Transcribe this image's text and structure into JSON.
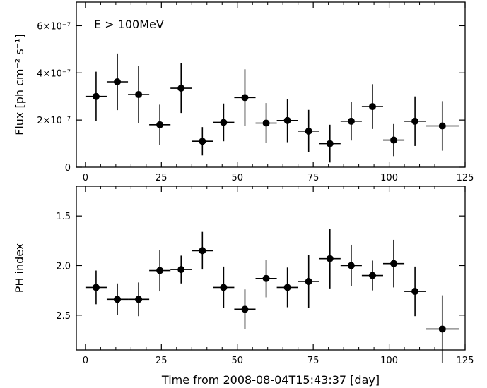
{
  "chart_data": [
    {
      "type": "scatter",
      "style": "errorbar",
      "annotation": "E > 100MeV",
      "xlabel": "",
      "ylabel": "Flux [ph cm⁻² s⁻¹]",
      "xlim": [
        -3,
        125
      ],
      "ylim": [
        0,
        7e-07
      ],
      "xticks": [
        0,
        25,
        50,
        75,
        100,
        125
      ],
      "yticks": [
        0,
        2e-07,
        4e-07,
        6e-07
      ],
      "ytick_labels": [
        "0",
        "2×10⁻⁷",
        "4×10⁻⁷",
        "6×10⁻⁷"
      ],
      "grid": false,
      "points": [
        {
          "x": 3.5,
          "xerr": 3.5,
          "y": 3e-07,
          "yerr": 1.05e-07
        },
        {
          "x": 10.5,
          "xerr": 3.5,
          "y": 3.62e-07,
          "yerr": 1.2e-07
        },
        {
          "x": 17.5,
          "xerr": 3.5,
          "y": 3.08e-07,
          "yerr": 1.2e-07
        },
        {
          "x": 24.5,
          "xerr": 3.5,
          "y": 1.8e-07,
          "yerr": 8.5e-08
        },
        {
          "x": 31.5,
          "xerr": 3.5,
          "y": 3.35e-07,
          "yerr": 1.05e-07
        },
        {
          "x": 38.5,
          "xerr": 3.5,
          "y": 1.1e-07,
          "yerr": 6e-08
        },
        {
          "x": 45.5,
          "xerr": 3.5,
          "y": 1.9e-07,
          "yerr": 8e-08
        },
        {
          "x": 52.5,
          "xerr": 3.5,
          "y": 2.95e-07,
          "yerr": 1.2e-07
        },
        {
          "x": 59.5,
          "xerr": 3.5,
          "y": 1.87e-07,
          "yerr": 8.5e-08
        },
        {
          "x": 66.5,
          "xerr": 3.5,
          "y": 1.98e-07,
          "yerr": 9.2e-08
        },
        {
          "x": 73.5,
          "xerr": 3.5,
          "y": 1.53e-07,
          "yerr": 9e-08
        },
        {
          "x": 80.5,
          "xerr": 3.5,
          "y": 1e-07,
          "yerr": 8e-08
        },
        {
          "x": 87.5,
          "xerr": 3.5,
          "y": 1.95e-07,
          "yerr": 8.2e-08
        },
        {
          "x": 94.5,
          "xerr": 3.5,
          "y": 2.57e-07,
          "yerr": 9.5e-08
        },
        {
          "x": 101.5,
          "xerr": 3.5,
          "y": 1.15e-07,
          "yerr": 6.8e-08
        },
        {
          "x": 108.5,
          "xerr": 3.5,
          "y": 1.95e-07,
          "yerr": 1.05e-07
        },
        {
          "x": 117.5,
          "xerr": 5.5,
          "y": 1.75e-07,
          "yerr": 1.05e-07
        }
      ]
    },
    {
      "type": "scatter",
      "style": "errorbar",
      "xlabel": "Time from 2008-08-04T15:43:37 [day]",
      "ylabel": "PH index",
      "xlim": [
        -3,
        125
      ],
      "ylim": [
        2.85,
        1.2
      ],
      "y_inverted": true,
      "xticks": [
        0,
        25,
        50,
        75,
        100,
        125
      ],
      "yticks": [
        1.5,
        2.0,
        2.5
      ],
      "ytick_labels": [
        "1.5",
        "2.0",
        "2.5"
      ],
      "grid": false,
      "points": [
        {
          "x": 3.5,
          "xerr": 3.5,
          "y": 2.22,
          "yerr": 0.17
        },
        {
          "x": 10.5,
          "xerr": 3.5,
          "y": 2.34,
          "yerr": 0.16
        },
        {
          "x": 17.5,
          "xerr": 3.5,
          "y": 2.34,
          "yerr": 0.17
        },
        {
          "x": 24.5,
          "xerr": 3.5,
          "y": 2.05,
          "yerr": 0.21
        },
        {
          "x": 31.5,
          "xerr": 3.5,
          "y": 2.04,
          "yerr": 0.14
        },
        {
          "x": 38.5,
          "xerr": 3.5,
          "y": 1.85,
          "yerr": 0.19
        },
        {
          "x": 45.5,
          "xerr": 3.5,
          "y": 2.22,
          "yerr": 0.21
        },
        {
          "x": 52.5,
          "xerr": 3.5,
          "y": 2.44,
          "yerr": 0.2
        },
        {
          "x": 59.5,
          "xerr": 3.5,
          "y": 2.13,
          "yerr": 0.19
        },
        {
          "x": 66.5,
          "xerr": 3.5,
          "y": 2.22,
          "yerr": 0.2
        },
        {
          "x": 73.5,
          "xerr": 3.5,
          "y": 2.16,
          "yerr": 0.27
        },
        {
          "x": 80.5,
          "xerr": 3.5,
          "y": 1.93,
          "yerr": 0.3
        },
        {
          "x": 87.5,
          "xerr": 3.5,
          "y": 2.0,
          "yerr": 0.21
        },
        {
          "x": 94.5,
          "xerr": 3.5,
          "y": 2.1,
          "yerr": 0.15
        },
        {
          "x": 101.5,
          "xerr": 3.5,
          "y": 1.98,
          "yerr": 0.24
        },
        {
          "x": 108.5,
          "xerr": 3.5,
          "y": 2.26,
          "yerr": 0.25
        },
        {
          "x": 117.5,
          "xerr": 5.5,
          "y": 2.64,
          "yerr": 0.34
        }
      ]
    }
  ]
}
